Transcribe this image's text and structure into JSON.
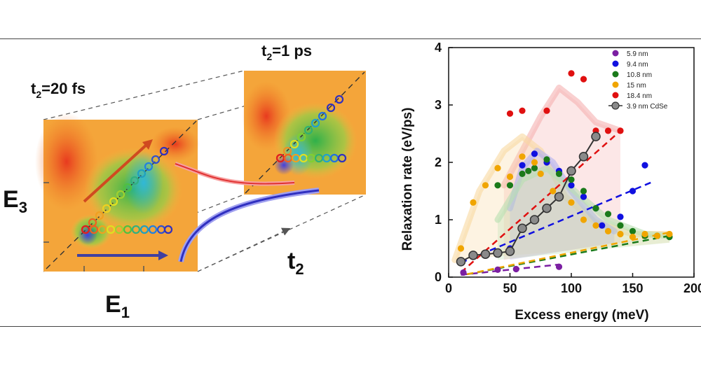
{
  "left_panel": {
    "t2_early": {
      "main": "t",
      "sub": "2",
      "value": "=20 fs"
    },
    "t2_late": {
      "main": "t",
      "sub": "2",
      "value": "=1 ps"
    },
    "axis_e1": {
      "main": "E",
      "sub": "1"
    },
    "axis_e3": {
      "main": "E",
      "sub": "3"
    },
    "axis_t2": {
      "main": "t",
      "sub": "2"
    }
  },
  "chart_data": {
    "type": "scatter",
    "title": "",
    "xlabel": "Excess energy (meV)",
    "ylabel": "Relaxation rate (eV/ps)",
    "xlim": [
      0,
      200
    ],
    "ylim": [
      0,
      4
    ],
    "x_ticks": [
      "0",
      "50",
      "100",
      "150",
      "200"
    ],
    "y_ticks": [
      "0",
      "1",
      "2",
      "3",
      "4"
    ],
    "legend_position": "top-right",
    "series": [
      {
        "name": "5.9 nm",
        "color": "#7b1fa2",
        "points": [
          [
            12,
            0.08
          ],
          [
            40,
            0.13
          ],
          [
            55,
            0.14
          ],
          [
            90,
            0.18
          ]
        ],
        "fit": [
          [
            10,
            0.04
          ],
          [
            90,
            0.22
          ]
        ]
      },
      {
        "name": "9.4 nm",
        "color": "#1010e0",
        "points": [
          [
            20,
            0.4
          ],
          [
            50,
            0.5
          ],
          [
            60,
            1.95
          ],
          [
            70,
            2.15
          ],
          [
            80,
            2.0
          ],
          [
            90,
            1.85
          ],
          [
            100,
            1.6
          ],
          [
            110,
            1.4
          ],
          [
            120,
            1.2
          ],
          [
            125,
            0.9
          ],
          [
            140,
            1.05
          ],
          [
            150,
            1.5
          ],
          [
            160,
            1.95
          ]
        ],
        "fit": [
          [
            10,
            0.25
          ],
          [
            165,
            1.65
          ]
        ]
      },
      {
        "name": "10.8 nm",
        "color": "#1a7a1a",
        "points": [
          [
            20,
            0.4
          ],
          [
            40,
            1.6
          ],
          [
            50,
            1.6
          ],
          [
            60,
            1.8
          ],
          [
            65,
            1.85
          ],
          [
            70,
            1.9
          ],
          [
            80,
            2.05
          ],
          [
            90,
            1.8
          ],
          [
            100,
            1.7
          ],
          [
            110,
            1.5
          ],
          [
            120,
            1.2
          ],
          [
            130,
            1.1
          ],
          [
            140,
            0.9
          ],
          [
            150,
            0.8
          ],
          [
            160,
            0.72
          ],
          [
            170,
            0.72
          ],
          [
            180,
            0.7
          ]
        ],
        "fit": [
          [
            15,
            0.05
          ],
          [
            180,
            0.72
          ]
        ]
      },
      {
        "name": "15 nm",
        "color": "#f0a500",
        "points": [
          [
            10,
            0.5
          ],
          [
            20,
            1.3
          ],
          [
            30,
            1.6
          ],
          [
            40,
            1.9
          ],
          [
            50,
            1.75
          ],
          [
            60,
            2.1
          ],
          [
            70,
            2.0
          ],
          [
            75,
            1.8
          ],
          [
            85,
            1.5
          ],
          [
            100,
            1.3
          ],
          [
            110,
            1.0
          ],
          [
            120,
            0.9
          ],
          [
            130,
            0.8
          ],
          [
            140,
            0.75
          ],
          [
            150,
            0.7
          ],
          [
            160,
            0.75
          ],
          [
            170,
            0.72
          ],
          [
            180,
            0.75
          ]
        ],
        "fit": [
          [
            15,
            0.05
          ],
          [
            180,
            0.78
          ]
        ]
      },
      {
        "name": "18.4 nm",
        "color": "#e01010",
        "points": [
          [
            50,
            2.85
          ],
          [
            60,
            2.9
          ],
          [
            80,
            2.9
          ],
          [
            100,
            3.55
          ],
          [
            110,
            3.45
          ],
          [
            120,
            2.55
          ],
          [
            130,
            2.55
          ],
          [
            140,
            2.55
          ]
        ],
        "fit": [
          [
            10,
            0.08
          ],
          [
            140,
            2.55
          ]
        ]
      },
      {
        "name": "3.9 nm CdSe",
        "color": "#555555",
        "points": [
          [
            10,
            0.27
          ],
          [
            20,
            0.38
          ],
          [
            30,
            0.4
          ],
          [
            40,
            0.42
          ],
          [
            50,
            0.45
          ],
          [
            60,
            0.85
          ],
          [
            70,
            1.0
          ],
          [
            80,
            1.2
          ],
          [
            90,
            1.4
          ],
          [
            100,
            1.85
          ],
          [
            110,
            2.1
          ],
          [
            120,
            2.45
          ]
        ]
      }
    ],
    "legend": [
      "5.9 nm",
      "9.4 nm",
      "10.8 nm",
      "15 nm",
      "18.4 nm",
      "3.9 nm CdSe"
    ]
  }
}
